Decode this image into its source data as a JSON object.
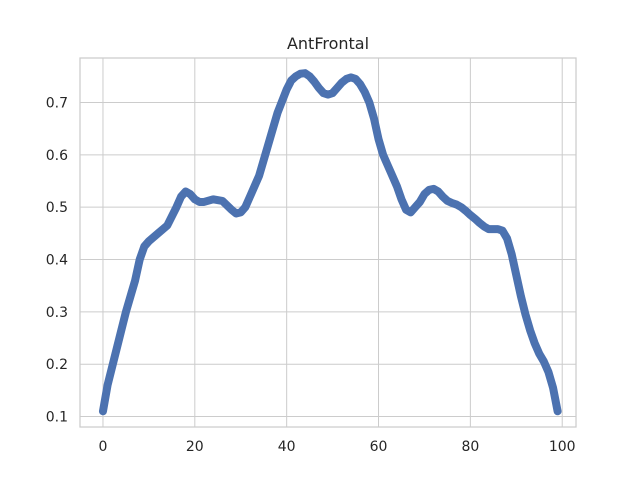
{
  "chart_data": {
    "type": "line",
    "title": "AntFrontal",
    "xlabel": "",
    "ylabel": "",
    "xlim": [
      -5,
      103
    ],
    "ylim": [
      0.08,
      0.785
    ],
    "xticks": [
      0,
      20,
      40,
      60,
      80,
      100
    ],
    "yticks": [
      0.1,
      0.2,
      0.3,
      0.4,
      0.5,
      0.6,
      0.7
    ],
    "grid": true,
    "legend": "none",
    "series": [
      {
        "color": "#4c72b0",
        "x": [
          0,
          1,
          3,
          5,
          7,
          8,
          9,
          10,
          12,
          14,
          16,
          17,
          18,
          19,
          20,
          21,
          22,
          24,
          26,
          28,
          29,
          30,
          31,
          32,
          34,
          36,
          38,
          40,
          41,
          42,
          43,
          44,
          45,
          46,
          47,
          48,
          49,
          50,
          51,
          52,
          53,
          54,
          55,
          56,
          57,
          58,
          59,
          60,
          61,
          62,
          63,
          64,
          65,
          66,
          67,
          68,
          69,
          70,
          71,
          72,
          73,
          74,
          75,
          76,
          77,
          78,
          79,
          80,
          81,
          82,
          83,
          84,
          85,
          86,
          87,
          88,
          89,
          90,
          91,
          92,
          93,
          94,
          95,
          96,
          97,
          98,
          99
        ],
        "y": [
          0.11,
          0.16,
          0.23,
          0.3,
          0.36,
          0.4,
          0.425,
          0.435,
          0.45,
          0.465,
          0.5,
          0.52,
          0.53,
          0.525,
          0.515,
          0.51,
          0.51,
          0.515,
          0.512,
          0.495,
          0.488,
          0.49,
          0.5,
          0.52,
          0.56,
          0.62,
          0.68,
          0.725,
          0.742,
          0.75,
          0.755,
          0.756,
          0.75,
          0.74,
          0.728,
          0.718,
          0.715,
          0.718,
          0.728,
          0.738,
          0.745,
          0.748,
          0.745,
          0.735,
          0.72,
          0.7,
          0.67,
          0.63,
          0.6,
          0.58,
          0.56,
          0.54,
          0.515,
          0.495,
          0.49,
          0.5,
          0.51,
          0.525,
          0.533,
          0.535,
          0.53,
          0.52,
          0.512,
          0.508,
          0.505,
          0.5,
          0.493,
          0.485,
          0.478,
          0.47,
          0.463,
          0.458,
          0.458,
          0.458,
          0.455,
          0.44,
          0.41,
          0.37,
          0.33,
          0.295,
          0.265,
          0.24,
          0.22,
          0.205,
          0.185,
          0.155,
          0.11
        ]
      }
    ]
  }
}
